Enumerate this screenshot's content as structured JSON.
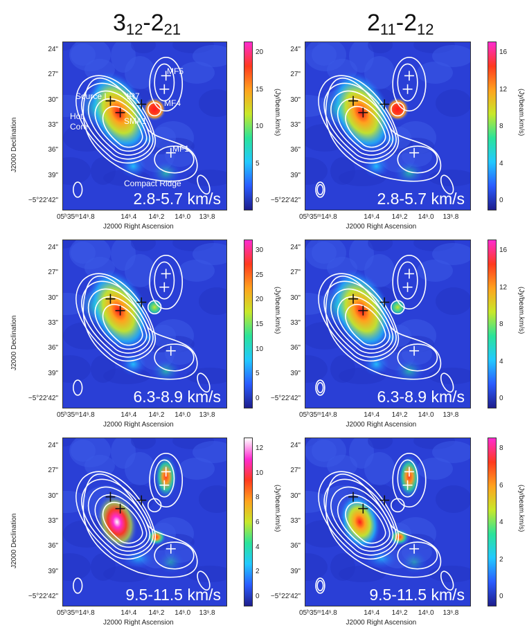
{
  "columns": [
    {
      "main": "3",
      "sub1": "12",
      "sep": "-",
      "main2": "2",
      "sub2": "21"
    },
    {
      "main": "2",
      "sub1": "11",
      "sep": "-",
      "main2": "2",
      "sub2": "12"
    }
  ],
  "axes": {
    "dec_label": "J2000 Declination",
    "ra_label": "J2000 Right Ascension",
    "dec_ticks": [
      "24\"",
      "27\"",
      "30\"",
      "33\"",
      "36\"",
      "39\"",
      "−5°22'42\""
    ],
    "ra_ticks": [
      "05ʰ35ᵐ14ˢ.8",
      "14ˢ.4",
      "14ˢ.2",
      "14ˢ.0",
      "13ˢ.8"
    ],
    "cbar_label": "(Jy/beam.km/s)"
  },
  "annotations": {
    "source_i": "Source I",
    "ir7": "IR7",
    "hot_core": "Hot\nCore",
    "sma1": "SMA1",
    "mf5": "MF5",
    "mf4": "MF4",
    "mf1": "MF1",
    "compact_ridge": "Compact Ridge"
  },
  "panels": [
    {
      "id": "p1",
      "velocity": "2.8-5.7 km/s",
      "cbar_ticks": [
        "20",
        "15",
        "10",
        "5",
        "0"
      ],
      "cmap": "jet"
    },
    {
      "id": "p2",
      "velocity": "2.8-5.7 km/s",
      "cbar_ticks": [
        "16",
        "12",
        "8",
        "4",
        "0"
      ],
      "cmap": "jet"
    },
    {
      "id": "p3",
      "velocity": "6.3-8.9 km/s",
      "cbar_ticks": [
        "30",
        "25",
        "20",
        "15",
        "10",
        "5",
        "0"
      ],
      "cmap": "jet"
    },
    {
      "id": "p4",
      "velocity": "6.3-8.9 km/s",
      "cbar_ticks": [
        "16",
        "12",
        "8",
        "4",
        "0"
      ],
      "cmap": "jet"
    },
    {
      "id": "p5",
      "velocity": "9.5-11.5 km/s",
      "cbar_ticks": [
        "12",
        "10",
        "8",
        "6",
        "4",
        "2",
        "0"
      ],
      "cmap": "hot"
    },
    {
      "id": "p6",
      "velocity": "9.5-11.5 km/s",
      "cbar_ticks": [
        "8",
        "6",
        "4",
        "2",
        "0"
      ],
      "cmap": "jet2"
    }
  ],
  "colors": {
    "map_bg": "#2a3fd6",
    "contour": "#ffffff",
    "cross_dark": "#111111",
    "cross_light": "#ffffff"
  }
}
